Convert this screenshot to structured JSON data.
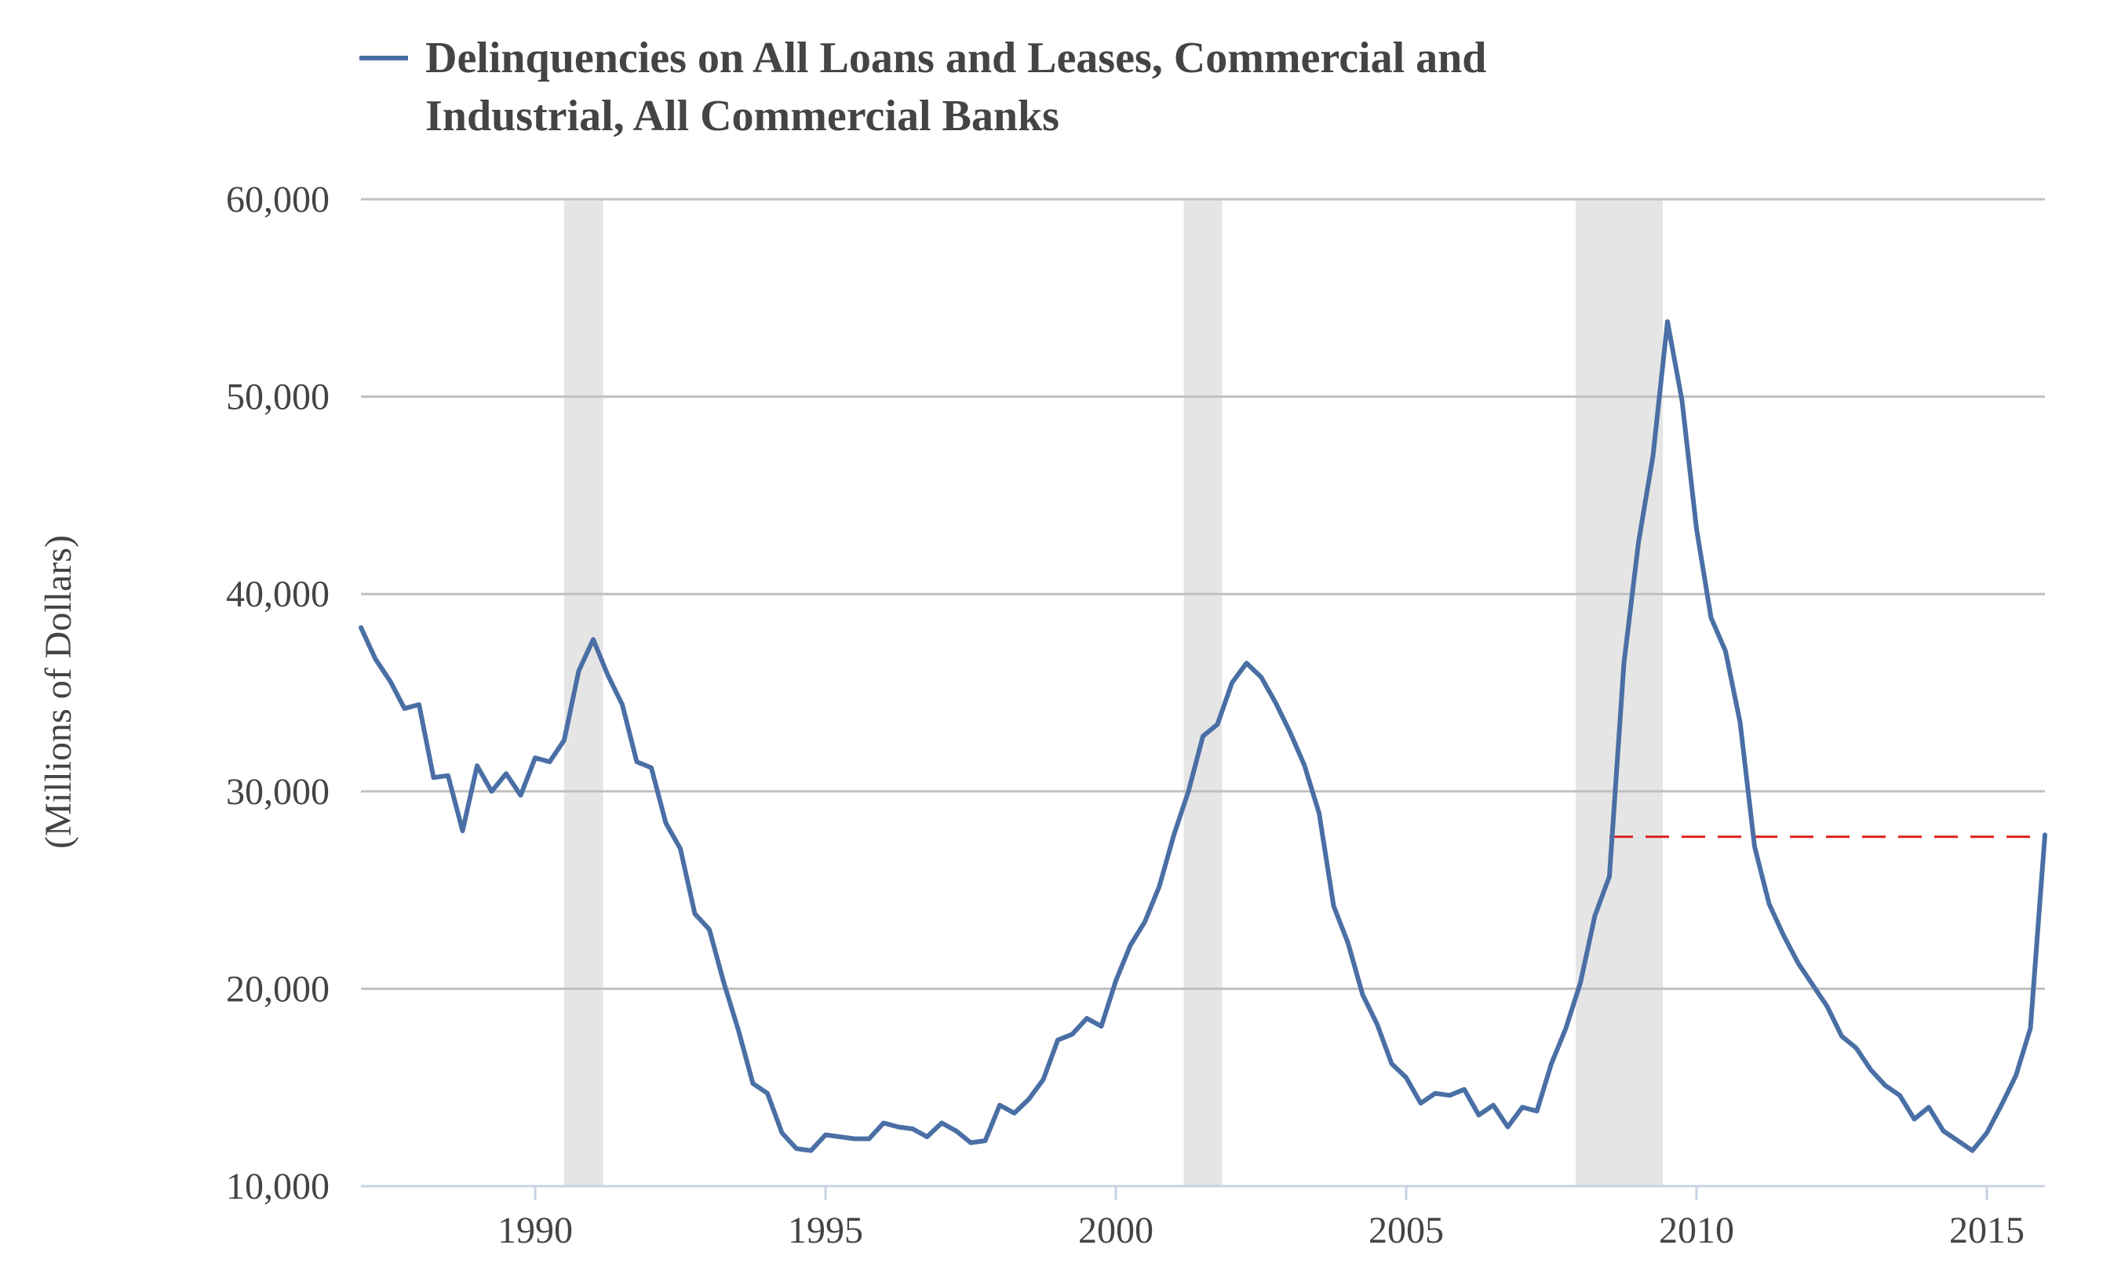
{
  "chart_data": {
    "type": "line",
    "title": "",
    "xlabel": "",
    "ylabel": "(Millions of Dollars)",
    "xlim": [
      1987.0,
      2016.0
    ],
    "ylim": [
      10000,
      60000
    ],
    "grid": true,
    "legend_position": "top-left",
    "yticks": [
      {
        "value": 10000,
        "label": "10,000"
      },
      {
        "value": 20000,
        "label": "20,000"
      },
      {
        "value": 30000,
        "label": "30,000"
      },
      {
        "value": 40000,
        "label": "40,000"
      },
      {
        "value": 50000,
        "label": "50,000"
      },
      {
        "value": 60000,
        "label": "60,000"
      }
    ],
    "xticks": [
      {
        "value": 1990,
        "label": "1990"
      },
      {
        "value": 1995,
        "label": "1995"
      },
      {
        "value": 2000,
        "label": "2000"
      },
      {
        "value": 2005,
        "label": "2005"
      },
      {
        "value": 2010,
        "label": "2010"
      },
      {
        "value": 2015,
        "label": "2015"
      }
    ],
    "recessions": [
      {
        "start": 1990.5,
        "end": 1991.17
      },
      {
        "start": 2001.17,
        "end": 2001.83
      },
      {
        "start": 2007.92,
        "end": 2009.42
      }
    ],
    "reference_line": {
      "y": 27700,
      "x_start": 2008.5,
      "x_end": 2016.0,
      "color": "#dd2222"
    },
    "series": [
      {
        "name": "Delinquencies on All Loans and Leases, Commercial and Industrial, All Commercial Banks",
        "color": "#4a6fa5",
        "x": [
          1987.0,
          1987.25,
          1987.5,
          1987.75,
          1988.0,
          1988.25,
          1988.5,
          1988.75,
          1989.0,
          1989.25,
          1989.5,
          1989.75,
          1990.0,
          1990.25,
          1990.5,
          1990.75,
          1991.0,
          1991.25,
          1991.5,
          1991.75,
          1992.0,
          1992.25,
          1992.5,
          1992.75,
          1993.0,
          1993.25,
          1993.5,
          1993.75,
          1994.0,
          1994.25,
          1994.5,
          1994.75,
          1995.0,
          1995.25,
          1995.5,
          1995.75,
          1996.0,
          1996.25,
          1996.5,
          1996.75,
          1997.0,
          1997.25,
          1997.5,
          1997.75,
          1998.0,
          1998.25,
          1998.5,
          1998.75,
          1999.0,
          1999.25,
          1999.5,
          1999.75,
          2000.0,
          2000.25,
          2000.5,
          2000.75,
          2001.0,
          2001.25,
          2001.5,
          2001.75,
          2002.0,
          2002.25,
          2002.5,
          2002.75,
          2003.0,
          2003.25,
          2003.5,
          2003.75,
          2004.0,
          2004.25,
          2004.5,
          2004.75,
          2005.0,
          2005.25,
          2005.5,
          2005.75,
          2006.0,
          2006.25,
          2006.5,
          2006.75,
          2007.0,
          2007.25,
          2007.5,
          2007.75,
          2008.0,
          2008.25,
          2008.5,
          2008.75,
          2009.0,
          2009.25,
          2009.5,
          2009.75,
          2010.0,
          2010.25,
          2010.5,
          2010.75,
          2011.0,
          2011.25,
          2011.5,
          2011.75,
          2012.0,
          2012.25,
          2012.5,
          2012.75,
          2013.0,
          2013.25,
          2013.5,
          2013.75,
          2014.0,
          2014.25,
          2014.5,
          2014.75,
          2015.0,
          2015.25,
          2015.5,
          2015.75,
          2016.0
        ],
        "values": [
          38300,
          36700,
          35600,
          34200,
          34400,
          30700,
          30800,
          28000,
          31300,
          30000,
          30900,
          29800,
          31700,
          31500,
          32600,
          36100,
          37700,
          35900,
          34400,
          31500,
          31200,
          28400,
          27100,
          23800,
          23000,
          20300,
          17900,
          15200,
          14700,
          12700,
          11900,
          11800,
          12600,
          12500,
          12400,
          12400,
          13200,
          13000,
          12900,
          12500,
          13200,
          12800,
          12200,
          12300,
          14100,
          13700,
          14400,
          15400,
          17400,
          17700,
          18500,
          18100,
          20400,
          22200,
          23400,
          25200,
          27800,
          30000,
          32800,
          33400,
          35500,
          36500,
          35800,
          34500,
          33000,
          31300,
          28900,
          24200,
          22300,
          19700,
          18200,
          16200,
          15500,
          14200,
          14700,
          14600,
          14900,
          13600,
          14100,
          13000,
          14000,
          13800,
          16200,
          18000,
          20300,
          23700,
          25700,
          36500,
          42600,
          47000,
          53800,
          49800,
          43300,
          38800,
          37100,
          33500,
          27200,
          24300,
          22700,
          21300,
          20200,
          19100,
          17600,
          17000,
          15900,
          15100,
          14600,
          13400,
          14000,
          12800,
          12300,
          11800,
          12700,
          14100,
          15600,
          18000,
          27800
        ]
      }
    ]
  }
}
